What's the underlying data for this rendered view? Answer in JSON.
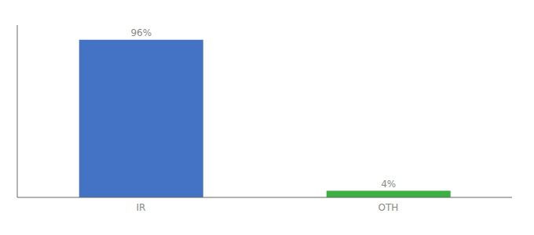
{
  "chart_data": {
    "type": "bar",
    "categories": [
      "IR",
      "OTH"
    ],
    "values": [
      96,
      4
    ],
    "value_labels": [
      "96%",
      "4%"
    ],
    "colors": [
      "#4472c4",
      "#3cb043"
    ],
    "ylim": [
      0,
      105
    ],
    "data_labels": true,
    "tick_labels": "x",
    "grid": false
  }
}
